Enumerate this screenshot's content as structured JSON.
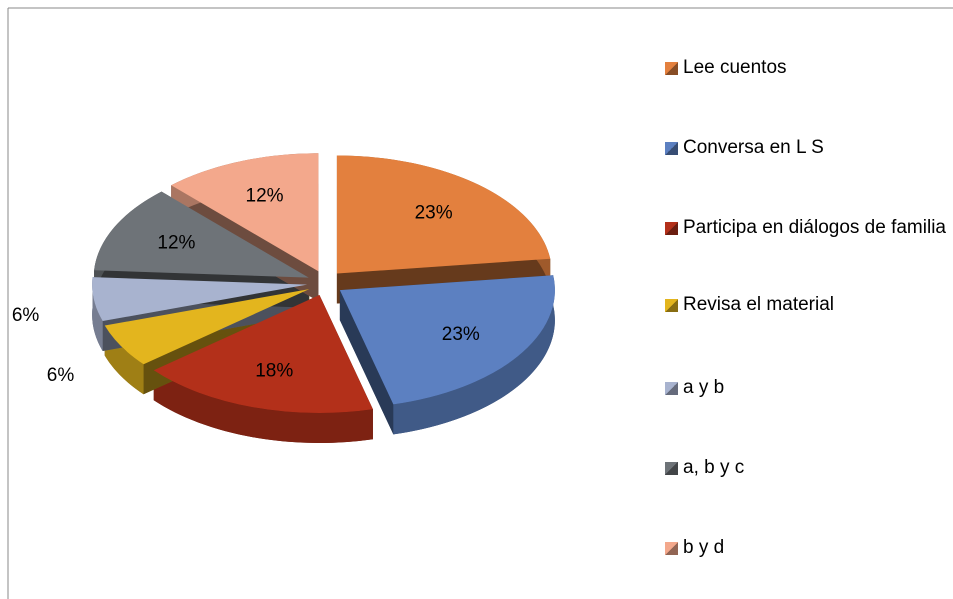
{
  "chart_data": {
    "type": "pie",
    "categories": [
      "Lee cuentos",
      "Conversa en L S",
      "Participa en diálogos de familia",
      "Revisa el material",
      "a y b",
      "a, b y c",
      "b y d"
    ],
    "values": [
      23,
      23,
      18,
      6,
      6,
      12,
      12
    ],
    "value_labels": [
      "23%",
      "23%",
      "18%",
      "6%",
      "6%",
      "12%",
      "12%"
    ],
    "colors": [
      "#e3803e",
      "#5c80c1",
      "#b3301a",
      "#e3b51e",
      "#a8b3cf",
      "#6e7378",
      "#f3a88c"
    ],
    "legend": "right"
  }
}
